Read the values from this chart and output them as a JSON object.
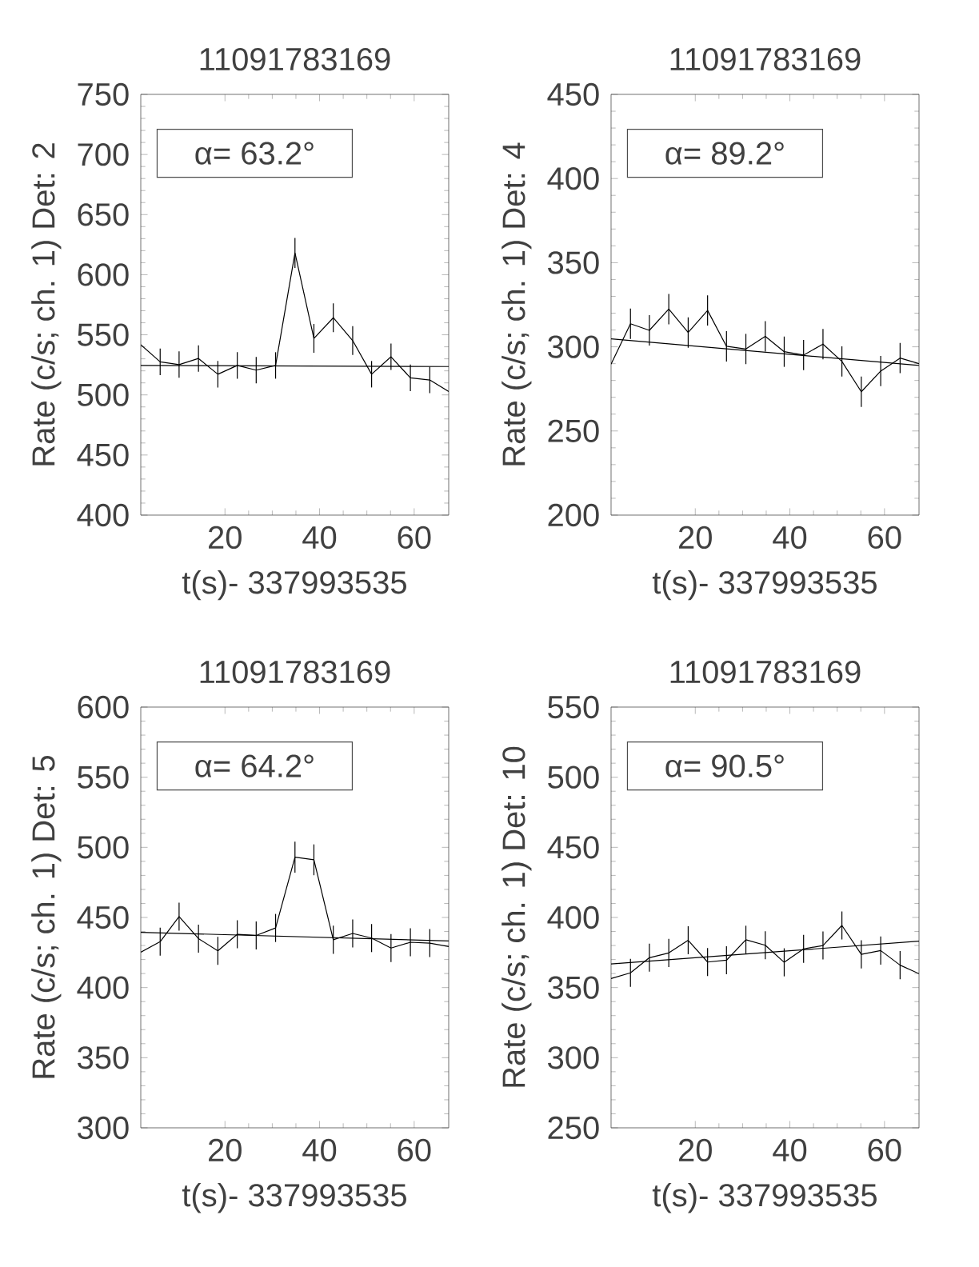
{
  "chart_data": [
    {
      "type": "line",
      "title": "11091783169",
      "xlabel": "t(s)- 337993535",
      "ylabel": "Rate (c/s; ch. 1) Det: 2",
      "annotations": [
        "α= 63.2°"
      ],
      "xlim": [
        2.2,
        67.3
      ],
      "ylim": [
        400,
        750
      ],
      "xticks": [
        20,
        40,
        60
      ],
      "yticks": [
        400,
        450,
        500,
        550,
        600,
        650,
        700,
        750
      ],
      "series": [
        {
          "color": "#000000",
          "x": [
            2.2,
            6.3,
            10.3,
            14.4,
            18.5,
            22.6,
            26.6,
            30.7,
            34.8,
            38.8,
            42.9,
            47.0,
            51.0,
            55.1,
            59.2,
            63.3,
            67.3
          ],
          "values": [
            541.7,
            527.5,
            525.2,
            530.3,
            517.2,
            524.5,
            520.6,
            524.5,
            618.1,
            547.0,
            564.2,
            545.2,
            517.2,
            531.7,
            514.2,
            512.4,
            502.8
          ],
          "errors": [
            null,
            11,
            11,
            11,
            11,
            11,
            11,
            11,
            12.5,
            12,
            12,
            12,
            11,
            11,
            11,
            11,
            null
          ]
        },
        {
          "color": "#000000",
          "x": [
            2.2,
            67.3
          ],
          "values": [
            524.5,
            523.6
          ]
        }
      ]
    },
    {
      "type": "line",
      "title": "11091783169",
      "xlabel": "t(s)- 337993535",
      "ylabel": "Rate (c/s; ch. 1) Det: 4",
      "annotations": [
        "α= 89.2°"
      ],
      "xlim": [
        2.2,
        67.3
      ],
      "ylim": [
        200,
        450
      ],
      "xticks": [
        20,
        40,
        60
      ],
      "yticks": [
        200,
        250,
        300,
        350,
        400,
        450
      ],
      "series": [
        {
          "color": "#000000",
          "x": [
            2.2,
            6.3,
            10.3,
            14.4,
            18.5,
            22.6,
            26.6,
            30.7,
            34.8,
            38.8,
            42.9,
            47.0,
            51.0,
            55.1,
            59.2,
            63.3,
            67.3
          ],
          "values": [
            289.7,
            313.7,
            309.8,
            322.4,
            308.5,
            321.6,
            300.3,
            298.7,
            306.2,
            297.1,
            295.1,
            301.6,
            291.3,
            273.3,
            285.6,
            293.3,
            290.0
          ],
          "errors": [
            null,
            9,
            9,
            9,
            9,
            9,
            9,
            9,
            9,
            9,
            9,
            9,
            9,
            9,
            9,
            9,
            null
          ]
        },
        {
          "color": "#000000",
          "x": [
            2.2,
            67.3
          ],
          "values": [
            304.7,
            288.9
          ]
        }
      ]
    },
    {
      "type": "line",
      "title": "11091783169",
      "xlabel": "t(s)- 337993535",
      "ylabel": "Rate (c/s; ch. 1) Det: 5",
      "annotations": [
        "α= 64.2°"
      ],
      "xlim": [
        2.2,
        67.3
      ],
      "ylim": [
        300,
        600
      ],
      "xticks": [
        20,
        40,
        60
      ],
      "yticks": [
        300,
        350,
        400,
        450,
        500,
        550,
        600
      ],
      "series": [
        {
          "color": "#000000",
          "x": [
            2.2,
            6.3,
            10.3,
            14.4,
            18.5,
            22.6,
            26.6,
            30.7,
            34.8,
            38.8,
            42.9,
            47.0,
            51.0,
            55.1,
            59.2,
            63.3,
            67.3
          ],
          "values": [
            425.2,
            432.7,
            450.6,
            434.9,
            426.2,
            438.0,
            437.2,
            442.5,
            493.0,
            491.1,
            434.1,
            438.6,
            435.3,
            428.2,
            432.3,
            431.7,
            429.2
          ],
          "errors": [
            null,
            10,
            10,
            10,
            10,
            10,
            10,
            10,
            11,
            11,
            10,
            10,
            10,
            10,
            10,
            10,
            null
          ]
        },
        {
          "color": "#000000",
          "x": [
            2.2,
            67.3
          ],
          "values": [
            439.4,
            433.3
          ]
        }
      ]
    },
    {
      "type": "line",
      "title": "11091783169",
      "xlabel": "t(s)- 337993535",
      "ylabel": "Rate (c/s; ch. 1) Det: 10",
      "annotations": [
        "α= 90.5°"
      ],
      "xlim": [
        2.2,
        67.3
      ],
      "ylim": [
        250,
        550
      ],
      "xticks": [
        20,
        40,
        60
      ],
      "yticks": [
        250,
        300,
        350,
        400,
        450,
        500,
        550
      ],
      "series": [
        {
          "color": "#000000",
          "x": [
            2.2,
            6.3,
            10.3,
            14.4,
            18.5,
            22.6,
            26.6,
            30.7,
            34.8,
            38.8,
            42.9,
            47.0,
            51.0,
            55.1,
            59.2,
            63.3,
            67.3
          ],
          "values": [
            356.4,
            360.5,
            371.3,
            374.7,
            383.7,
            368.2,
            369.5,
            384.1,
            380.2,
            368.0,
            377.6,
            380.0,
            394.3,
            373.7,
            376.4,
            366.0,
            359.9
          ],
          "errors": [
            null,
            10,
            10,
            10,
            10,
            10,
            10,
            10,
            10,
            10,
            10,
            10,
            10,
            10,
            10,
            10,
            null
          ]
        },
        {
          "color": "#000000",
          "x": [
            2.2,
            67.3
          ],
          "values": [
            366.8,
            383.1
          ]
        }
      ]
    }
  ]
}
